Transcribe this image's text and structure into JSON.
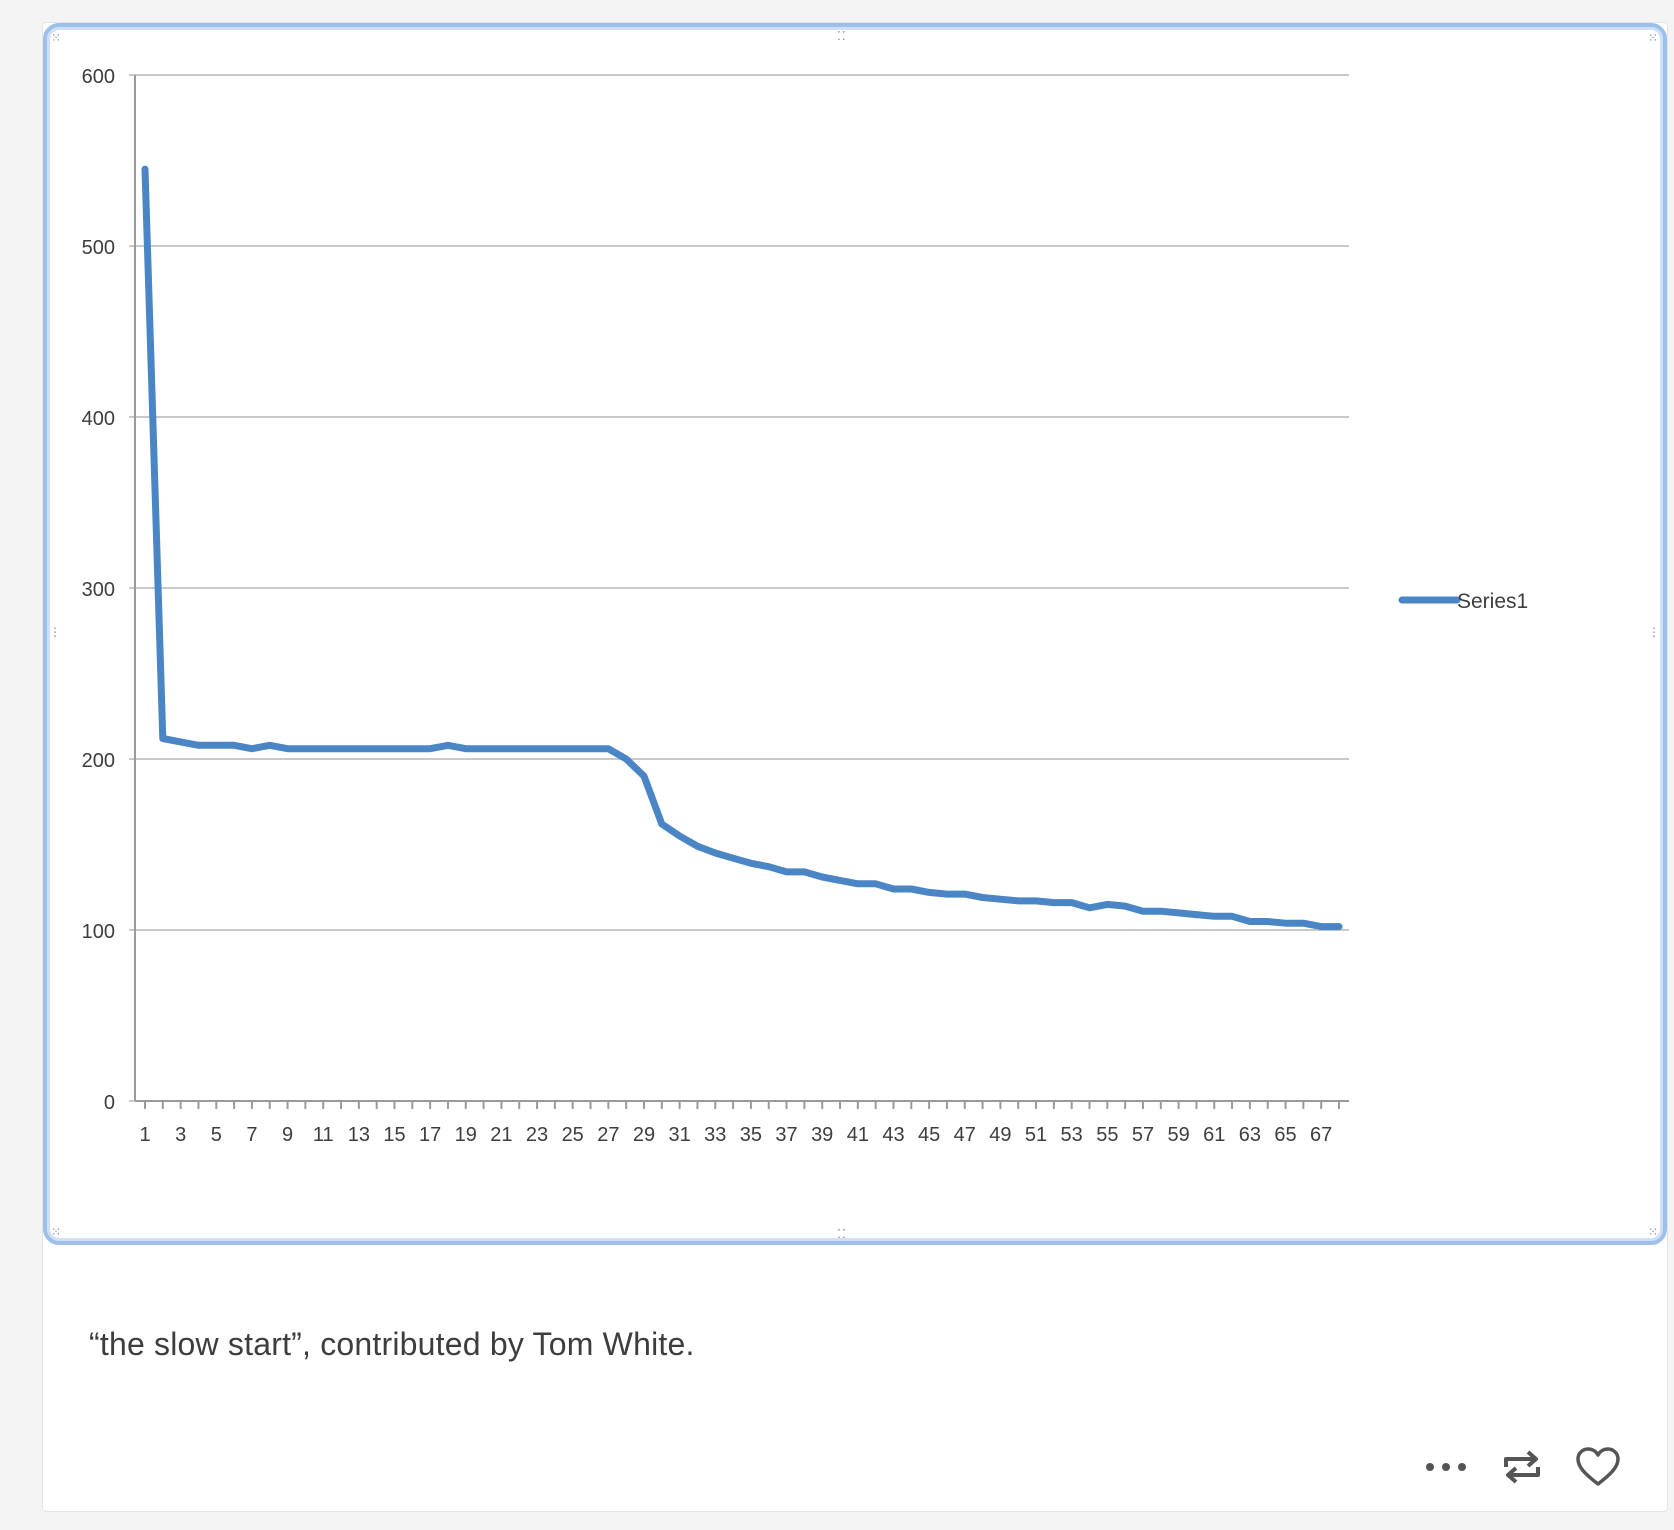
{
  "post": {
    "caption": "“the slow start”, contributed by Tom White.",
    "actions": {
      "more_icon": "more-dots-icon",
      "reblog_icon": "reblog-icon",
      "like_icon": "heart-icon"
    }
  },
  "colors": {
    "series": "#4a86c5",
    "frame": "#9cc0ea",
    "grid": "#c8c8c8",
    "text": "#3d3d3d"
  },
  "chart_data": {
    "type": "line",
    "title": "",
    "xlabel": "",
    "ylabel": "",
    "ylim": [
      0,
      600
    ],
    "yticks": [
      0,
      100,
      200,
      300,
      400,
      500,
      600
    ],
    "xlim": [
      1,
      68
    ],
    "xticklabels": [
      "1",
      "3",
      "5",
      "7",
      "9",
      "11",
      "13",
      "15",
      "17",
      "19",
      "21",
      "23",
      "25",
      "27",
      "29",
      "31",
      "33",
      "35",
      "37",
      "39",
      "41",
      "43",
      "45",
      "47",
      "49",
      "51",
      "53",
      "55",
      "57",
      "59",
      "61",
      "63",
      "65",
      "67"
    ],
    "grid": "horizontal",
    "legend_position": "right",
    "series": [
      {
        "name": "Series1",
        "x": [
          1,
          2,
          3,
          4,
          5,
          6,
          7,
          8,
          9,
          10,
          11,
          12,
          13,
          14,
          15,
          16,
          17,
          18,
          19,
          20,
          21,
          22,
          23,
          24,
          25,
          26,
          27,
          28,
          29,
          30,
          31,
          32,
          33,
          34,
          35,
          36,
          37,
          38,
          39,
          40,
          41,
          42,
          43,
          44,
          45,
          46,
          47,
          48,
          49,
          50,
          51,
          52,
          53,
          54,
          55,
          56,
          57,
          58,
          59,
          60,
          61,
          62,
          63,
          64,
          65,
          66,
          67,
          68
        ],
        "values": [
          545,
          212,
          210,
          208,
          208,
          208,
          206,
          208,
          206,
          206,
          206,
          206,
          206,
          206,
          206,
          206,
          206,
          208,
          206,
          206,
          206,
          206,
          206,
          206,
          206,
          206,
          206,
          200,
          190,
          162,
          155,
          149,
          145,
          142,
          139,
          137,
          134,
          134,
          131,
          129,
          127,
          127,
          124,
          124,
          122,
          121,
          121,
          119,
          118,
          117,
          117,
          116,
          116,
          113,
          115,
          114,
          111,
          111,
          110,
          109,
          108,
          108,
          105,
          105,
          104,
          104,
          102,
          102
        ]
      }
    ]
  }
}
